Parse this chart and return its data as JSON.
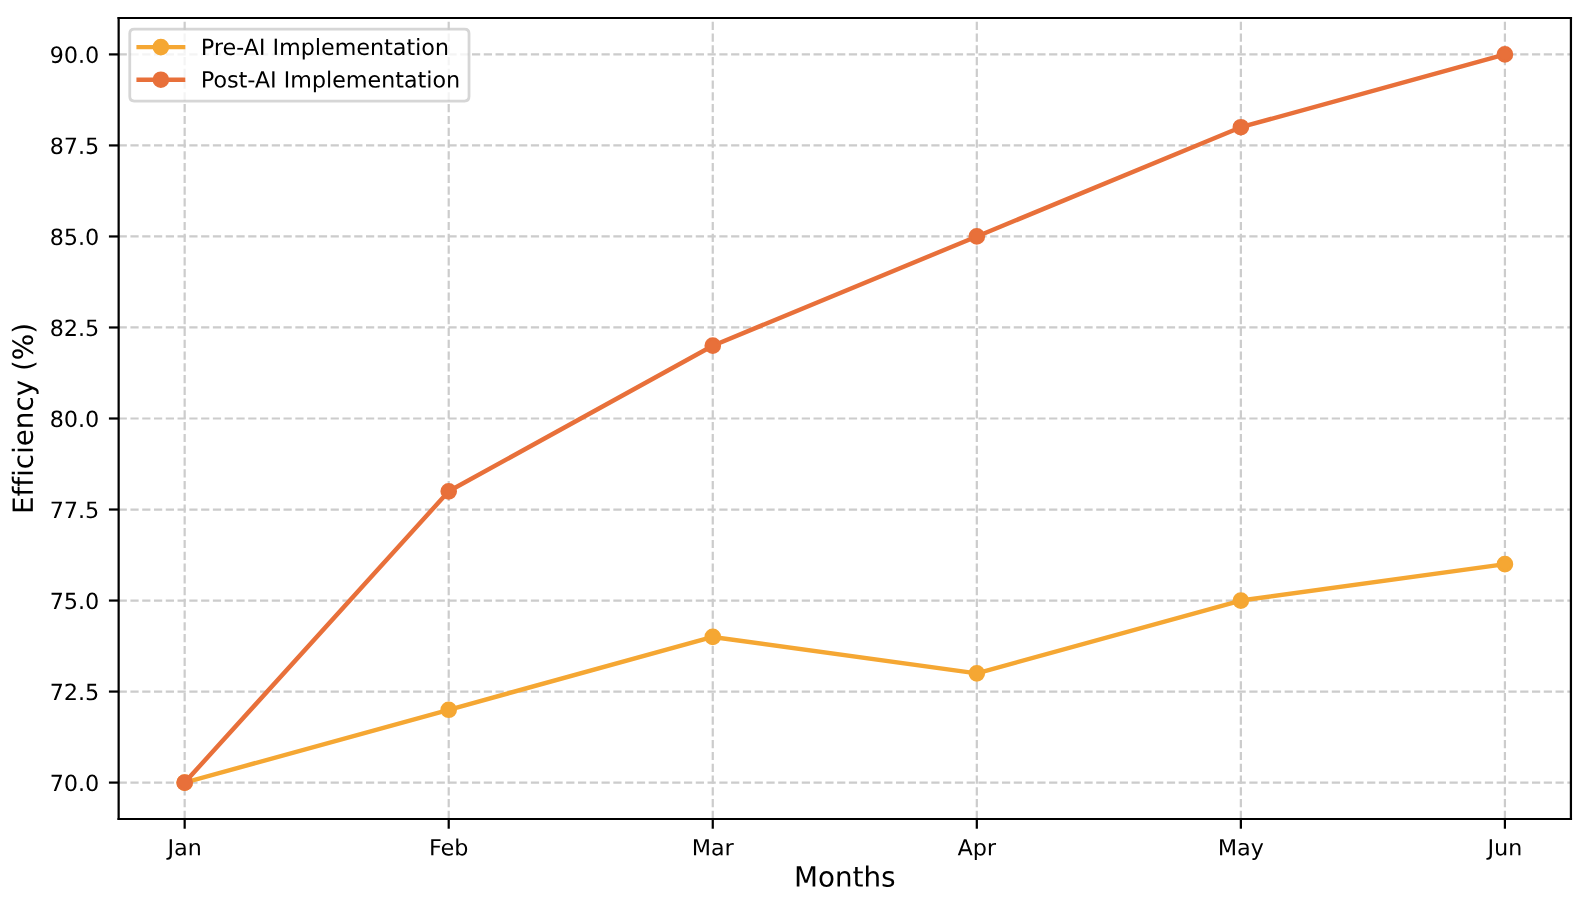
{
  "chart_data": {
    "type": "line",
    "xlabel": "Months",
    "ylabel": "Efficiency (%)",
    "categories": [
      "Jan",
      "Feb",
      "Mar",
      "Apr",
      "May",
      "Jun"
    ],
    "series": [
      {
        "name": "Pre-AI Implementation",
        "color": "#f5a733",
        "values": [
          70,
          72,
          74,
          73,
          75,
          76
        ]
      },
      {
        "name": "Post-AI Implementation",
        "color": "#e8703a",
        "values": [
          70,
          78,
          82,
          85,
          88,
          90
        ]
      }
    ],
    "ylim": [
      69,
      91
    ],
    "yticks": [
      {
        "value": 70,
        "label": "70.0"
      },
      {
        "value": 72.5,
        "label": "72.5"
      },
      {
        "value": 75,
        "label": "75.0"
      },
      {
        "value": 77.5,
        "label": "77.5"
      },
      {
        "value": 80,
        "label": "80.0"
      },
      {
        "value": 82.5,
        "label": "82.5"
      },
      {
        "value": 85,
        "label": "85.0"
      },
      {
        "value": 87.5,
        "label": "87.5"
      },
      {
        "value": 90,
        "label": "90.0"
      }
    ],
    "grid": true,
    "legend": "top left",
    "marker": "circle",
    "line_style": "solid"
  }
}
